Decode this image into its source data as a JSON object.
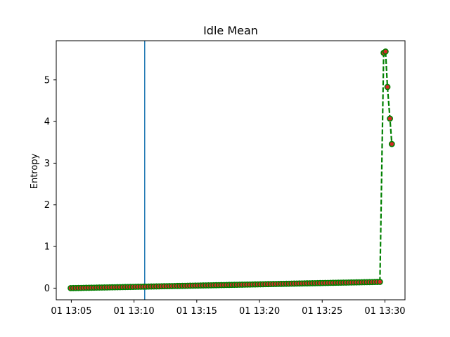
{
  "chart_data": {
    "type": "line",
    "title": "Idle Mean",
    "xlabel": "",
    "ylabel": "Entropy",
    "x_unit": "minutes after 13:00",
    "xlim": [
      3.8,
      31.6
    ],
    "ylim": [
      -0.28,
      5.94
    ],
    "x_ticks": [
      {
        "value": 5,
        "label": "01 13:05"
      },
      {
        "value": 10,
        "label": "01 13:10"
      },
      {
        "value": 15,
        "label": "01 13:15"
      },
      {
        "value": 20,
        "label": "01 13:20"
      },
      {
        "value": 25,
        "label": "01 13:25"
      },
      {
        "value": 30,
        "label": "01 13:30"
      }
    ],
    "y_ticks": [
      {
        "value": 0,
        "label": "0"
      },
      {
        "value": 1,
        "label": "1"
      },
      {
        "value": 2,
        "label": "2"
      },
      {
        "value": 3,
        "label": "3"
      },
      {
        "value": 4,
        "label": "4"
      },
      {
        "value": 5,
        "label": "5"
      }
    ],
    "vline": {
      "x": 10.85,
      "color": "#1f77b4"
    },
    "series": [
      {
        "name": "Idle Mean",
        "line_color": "#008000",
        "line_style": "dashed",
        "marker_face": "#d62728",
        "marker_edge": "#008000",
        "ramp": {
          "x_start": 4.95,
          "x_end": 29.6,
          "y_start": 0.0,
          "y_end": 0.15,
          "count": 120
        },
        "points": [
          {
            "x": 29.9,
            "y": 5.65
          },
          {
            "x": 30.05,
            "y": 5.68
          },
          {
            "x": 30.2,
            "y": 4.83
          },
          {
            "x": 30.4,
            "y": 4.07
          },
          {
            "x": 30.55,
            "y": 3.46
          }
        ]
      }
    ]
  }
}
